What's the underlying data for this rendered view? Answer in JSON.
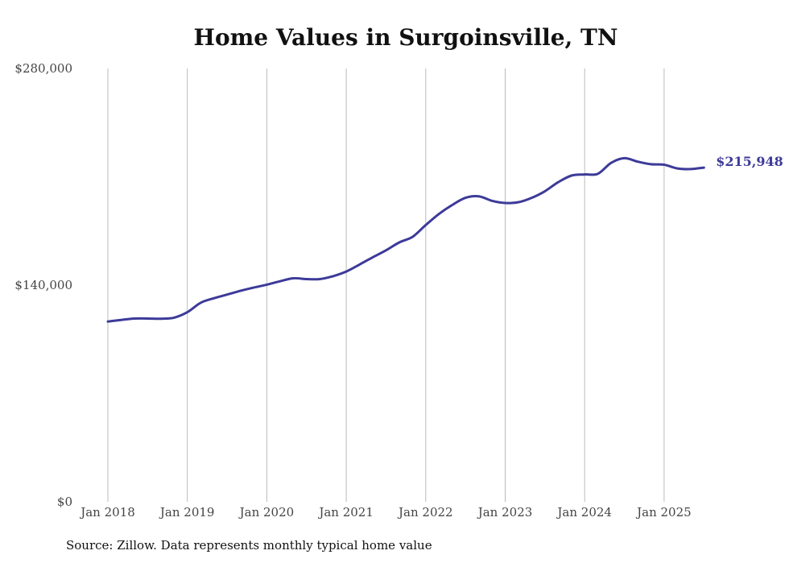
{
  "chart_data": {
    "type": "line",
    "title": "Home Values in Surgoinsville, TN",
    "xlabel": "",
    "ylabel": "",
    "ylim": [
      0,
      280000
    ],
    "yticks": [
      "$0",
      "$140,000",
      "$280,000"
    ],
    "ytick_values": [
      0,
      140000,
      280000
    ],
    "xticks": [
      "Jan 2018",
      "Jan 2019",
      "Jan 2020",
      "Jan 2021",
      "Jan 2022",
      "Jan 2023",
      "Jan 2024",
      "Jan 2025"
    ],
    "xtick_years": [
      2018,
      2019,
      2020,
      2021,
      2022,
      2023,
      2024,
      2025
    ],
    "grid": "vertical lines at each January",
    "line_color": "#3d3a99",
    "end_label": "$215,948",
    "series": [
      {
        "points": [
          [
            "2018-01",
            116500
          ],
          [
            "2018-03",
            117500
          ],
          [
            "2018-05",
            118400
          ],
          [
            "2018-07",
            118400
          ],
          [
            "2018-09",
            118300
          ],
          [
            "2018-11",
            119000
          ],
          [
            "2019-01",
            122500
          ],
          [
            "2019-03",
            128600
          ],
          [
            "2019-05",
            131500
          ],
          [
            "2019-07",
            133900
          ],
          [
            "2019-09",
            136300
          ],
          [
            "2019-11",
            138400
          ],
          [
            "2020-01",
            140300
          ],
          [
            "2020-03",
            142500
          ],
          [
            "2020-05",
            144400
          ],
          [
            "2020-07",
            143900
          ],
          [
            "2020-09",
            143900
          ],
          [
            "2020-11",
            145800
          ],
          [
            "2021-01",
            148800
          ],
          [
            "2021-03",
            153300
          ],
          [
            "2021-05",
            158000
          ],
          [
            "2021-07",
            162500
          ],
          [
            "2021-09",
            167600
          ],
          [
            "2021-11",
            171200
          ],
          [
            "2022-01",
            178800
          ],
          [
            "2022-03",
            186000
          ],
          [
            "2022-05",
            191800
          ],
          [
            "2022-07",
            196400
          ],
          [
            "2022-09",
            197400
          ],
          [
            "2022-11",
            194500
          ],
          [
            "2023-01",
            193100
          ],
          [
            "2023-03",
            193600
          ],
          [
            "2023-05",
            196400
          ],
          [
            "2023-07",
            200700
          ],
          [
            "2023-09",
            206500
          ],
          [
            "2023-11",
            210800
          ],
          [
            "2024-01",
            211500
          ],
          [
            "2024-03",
            212000
          ],
          [
            "2024-05",
            219000
          ],
          [
            "2024-07",
            222000
          ],
          [
            "2024-09",
            219800
          ],
          [
            "2024-11",
            218100
          ],
          [
            "2025-01",
            217800
          ],
          [
            "2025-03",
            215400
          ],
          [
            "2025-05",
            215000
          ],
          [
            "2025-07",
            215948
          ]
        ]
      }
    ]
  },
  "source": "Source: Zillow. Data represents monthly typical home value"
}
